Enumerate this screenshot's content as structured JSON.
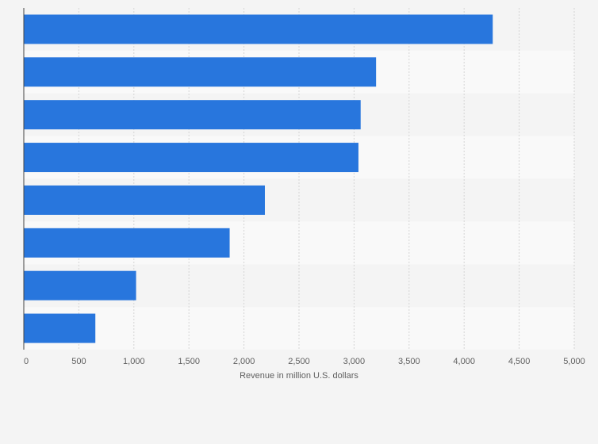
{
  "chart_data": {
    "type": "bar",
    "orientation": "horizontal",
    "categories": [
      "",
      "",
      "",
      "",
      "",
      "",
      "",
      ""
    ],
    "values": [
      4260,
      3200,
      3060,
      3040,
      2190,
      1870,
      1020,
      650
    ],
    "title": "",
    "xlabel": "Revenue in million U.S. dollars",
    "ylabel": "",
    "xlim": [
      0,
      5000
    ],
    "xticks": [
      0,
      500,
      1000,
      1500,
      2000,
      2500,
      3000,
      3500,
      4000,
      4500,
      5000
    ],
    "xtick_labels": [
      "0",
      "500",
      "1,000",
      "1,500",
      "2,000",
      "2,500",
      "3,000",
      "3,500",
      "4,000",
      "4,500",
      "5,000"
    ],
    "grid": true,
    "bar_color": "#2876dd"
  },
  "colors": {
    "background": "#f4f4f4",
    "band_alt": "#f9f9f9",
    "grid": "#d5d5d5",
    "axis": "#444444",
    "text": "#5f5f5f"
  }
}
